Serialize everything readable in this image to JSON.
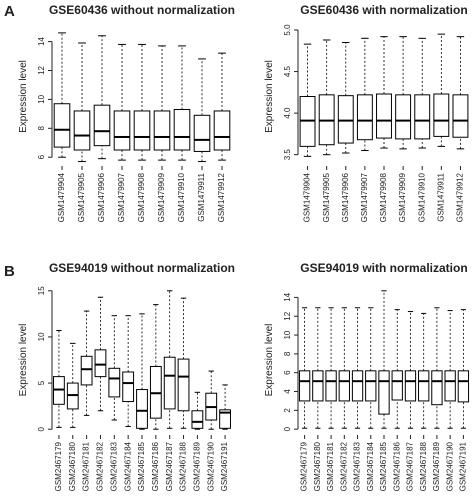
{
  "panels": [
    "A",
    "B"
  ],
  "chart_data": [
    {
      "type": "box",
      "title": "GSE60436 without normalization",
      "y_label": "Expression level",
      "categories": [
        "GSM1479904",
        "GSM1479905",
        "GSM1479906",
        "GSM1479907",
        "GSM1479908",
        "GSM1479909",
        "GSM1479910",
        "GSM1479911",
        "GSM1479912"
      ],
      "min": [
        6.0,
        5.7,
        5.9,
        5.8,
        5.8,
        5.8,
        5.8,
        5.7,
        5.8
      ],
      "q1": [
        6.7,
        6.5,
        6.8,
        6.5,
        6.5,
        6.5,
        6.5,
        6.4,
        6.5
      ],
      "median": [
        7.9,
        7.5,
        7.8,
        7.4,
        7.4,
        7.4,
        7.4,
        7.2,
        7.4
      ],
      "q3": [
        9.7,
        9.2,
        9.6,
        9.2,
        9.2,
        9.2,
        9.3,
        8.9,
        9.2
      ],
      "max": [
        14.6,
        13.9,
        14.4,
        13.8,
        13.8,
        13.7,
        13.7,
        12.8,
        13.2
      ],
      "ylim": [
        5.6,
        14.8
      ],
      "yticks": [
        6,
        8,
        10,
        12,
        14
      ],
      "color": "#000000",
      "grid": false
    },
    {
      "type": "box",
      "title": "GSE60436 with normalization",
      "y_label": "Expression level",
      "categories": [
        "GSM1479904",
        "GSM1479905",
        "GSM1479906",
        "GSM1479907",
        "GSM1479908",
        "GSM1479909",
        "GSM1479910",
        "GSM1479911",
        "GSM1479912"
      ],
      "min": [
        3.48,
        3.5,
        3.52,
        3.55,
        3.58,
        3.57,
        3.58,
        3.6,
        3.57
      ],
      "q1": [
        3.6,
        3.62,
        3.64,
        3.68,
        3.7,
        3.69,
        3.69,
        3.72,
        3.71
      ],
      "median": [
        3.91,
        3.91,
        3.91,
        3.91,
        3.91,
        3.91,
        3.91,
        3.91,
        3.91
      ],
      "q3": [
        4.2,
        4.22,
        4.21,
        4.22,
        4.23,
        4.22,
        4.22,
        4.23,
        4.22
      ],
      "max": [
        4.83,
        4.88,
        4.85,
        4.9,
        4.92,
        4.92,
        4.9,
        4.95,
        4.92
      ],
      "ylim": [
        3.4,
        5.0
      ],
      "yticks": [
        3.5,
        {
          "value": 4,
          "label": "4.0"
        },
        4.5,
        {
          "value": 5,
          "label": "5.0"
        }
      ],
      "color": "#000000",
      "grid": false
    },
    {
      "type": "box",
      "title": "GSE94019 without normalization",
      "y_label": "Expression level",
      "categories": [
        "GSM2467179",
        "GSM2467180",
        "GSM2467181",
        "GSM2467182",
        "GSM2467183",
        "GSM2467184",
        "GSM2467185",
        "GSM2467186",
        "GSM2467187",
        "GSM2467188",
        "GSM2467189",
        "GSM2467190",
        "GSM2467191"
      ],
      "min": [
        0.2,
        0.2,
        1.5,
        2.0,
        1.0,
        0.3,
        0.0,
        0.0,
        0.1,
        0.1,
        0.0,
        0.0,
        0.0
      ],
      "q1": [
        2.7,
        2.2,
        4.8,
        5.7,
        3.5,
        3.0,
        0.1,
        1.2,
        2.2,
        2.0,
        0.1,
        1.0,
        0.1
      ],
      "median": [
        4.3,
        3.7,
        6.5,
        7.0,
        5.5,
        5.0,
        2.0,
        3.9,
        5.8,
        5.7,
        0.8,
        2.4,
        1.8
      ],
      "q3": [
        5.7,
        5.0,
        7.9,
        8.6,
        6.6,
        6.2,
        4.3,
        6.8,
        7.8,
        7.6,
        2.0,
        3.9,
        2.1
      ],
      "max": [
        10.7,
        9.3,
        12.8,
        14.3,
        12.3,
        12.3,
        12.5,
        13.5,
        15.0,
        14.2,
        4.0,
        6.3,
        4.8
      ],
      "ylim": [
        -0.3,
        15.3
      ],
      "yticks": [
        0,
        5,
        10,
        15
      ],
      "color": "#000000",
      "grid": false
    },
    {
      "type": "box",
      "title": "GSE94019 with normalization",
      "y_label": "Expression level",
      "categories": [
        "GSM2467179",
        "GSM2467180",
        "GSM2467181",
        "GSM2467182",
        "GSM2467183",
        "GSM2467184",
        "GSM2467185",
        "GSM2467186",
        "GSM2467187",
        "GSM2467188",
        "GSM2467189",
        "GSM2467190",
        "GSM2467191"
      ],
      "min": [
        0.1,
        0.1,
        0.1,
        0.1,
        0.1,
        0.1,
        0.1,
        0.1,
        0.1,
        0.1,
        0.1,
        0.1,
        0.1
      ],
      "q1": [
        3.0,
        3.0,
        3.0,
        3.0,
        3.0,
        3.0,
        1.6,
        3.1,
        3.0,
        3.0,
        2.6,
        3.0,
        2.9
      ],
      "median": [
        5.1,
        5.1,
        5.1,
        5.1,
        5.1,
        5.1,
        5.1,
        5.1,
        5.1,
        5.1,
        5.1,
        5.1,
        5.1
      ],
      "q3": [
        6.2,
        6.2,
        6.2,
        6.2,
        6.2,
        6.2,
        6.2,
        6.2,
        6.2,
        6.2,
        6.2,
        6.2,
        6.2
      ],
      "max": [
        12.9,
        12.9,
        12.9,
        12.9,
        12.9,
        12.9,
        14.7,
        12.7,
        12.5,
        12.3,
        12.9,
        12.6,
        12.7
      ],
      "ylim": [
        -0.3,
        15
      ],
      "yticks": [
        0,
        2,
        4,
        6,
        8,
        10,
        12,
        14
      ],
      "color": "#000000",
      "grid": false
    }
  ]
}
